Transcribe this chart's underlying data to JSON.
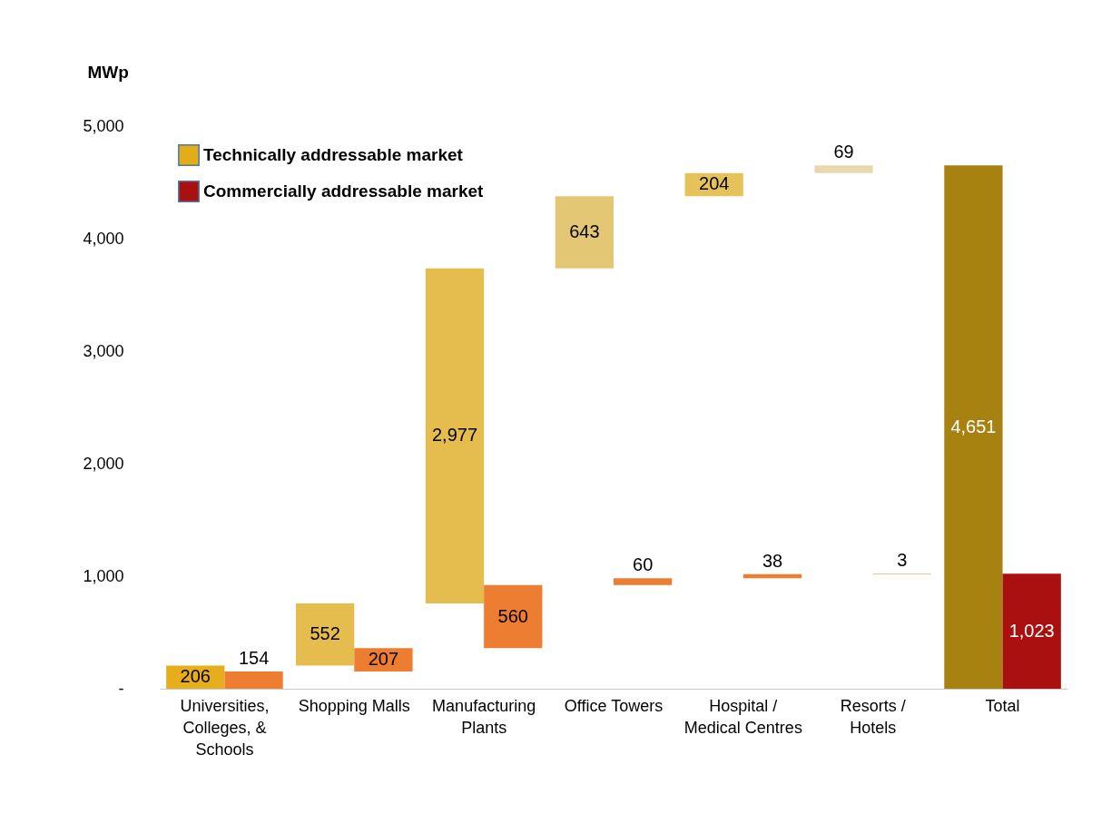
{
  "chart_data": {
    "type": "bar",
    "ylabel": "MWp",
    "categories": [
      "Universities, Colleges, & Schools",
      "Shopping Malls",
      "Manufacturing Plants",
      "Office Towers",
      "Hospital / Medical Centres",
      "Resorts / Hotels",
      "Total"
    ],
    "series": [
      {
        "name": "Technically addressable market",
        "color": "#e3ad1a",
        "values": [
          206,
          552,
          2977,
          643,
          204,
          69,
          4651
        ],
        "base": [
          0,
          206,
          758,
          3735,
          4378,
          4582,
          0
        ],
        "colors": [
          "#e6ad1c",
          "#e5bd4f",
          "#e5bd4f",
          "#e4c774",
          "#e5c35a",
          "#e8d8b0",
          "#a88211"
        ],
        "value_labels": [
          "206",
          "552",
          "2,977",
          "643",
          "204",
          "69",
          "4,651"
        ]
      },
      {
        "name": "Commercially addressable market",
        "color": "#aa1010",
        "values": [
          154,
          207,
          560,
          60,
          38,
          3,
          1023
        ],
        "base": [
          0,
          154,
          361,
          921,
          981,
          1019,
          0
        ],
        "colors": [
          "#ed7d31",
          "#ed7d31",
          "#ed7d31",
          "#ed7d31",
          "#ed7d31",
          "#ed7d31",
          "#aa1010"
        ],
        "value_labels": [
          "154",
          "207",
          "560",
          "60",
          "38",
          "3",
          "1,023"
        ]
      }
    ],
    "ylim": [
      0,
      5000
    ],
    "yticks": [
      {
        "value": 0,
        "label": "-"
      },
      {
        "value": 1000,
        "label": "1,000"
      },
      {
        "value": 2000,
        "label": "2,000"
      },
      {
        "value": 3000,
        "label": "3,000"
      },
      {
        "value": 4000,
        "label": "4,000"
      },
      {
        "value": 5000,
        "label": "5,000"
      }
    ],
    "grid": false,
    "legend": "top left"
  }
}
